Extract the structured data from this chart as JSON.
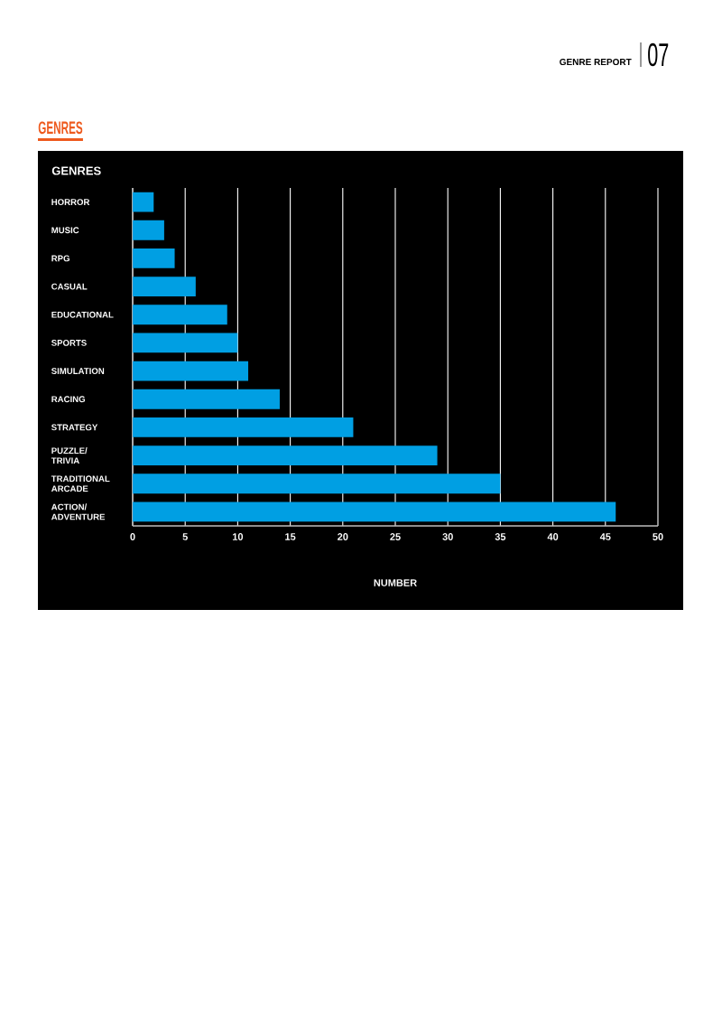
{
  "chart_data": {
    "type": "bar",
    "orientation": "horizontal",
    "title": "GENRES",
    "ylabel": "GENRES",
    "xlabel": "NUMBER",
    "categories": [
      "HORROR",
      "MUSIC",
      "RPG",
      "CASUAL",
      "EDUCATIONAL",
      "SPORTS",
      "SIMULATION",
      "RACING",
      "STRATEGY",
      "PUZZLE/TRIVIA",
      "TRADITIONAL ARCADE",
      "ACTION/ADVENTURE"
    ],
    "values": [
      2,
      3,
      4,
      6,
      9,
      10,
      11,
      14,
      21,
      29,
      35,
      46
    ],
    "color": "#009fe3",
    "xlim": [
      0,
      50
    ],
    "xticks": [
      0,
      5,
      10,
      15,
      20,
      25,
      30,
      35,
      40,
      45,
      50
    ],
    "grid": "x",
    "annotations": [
      "GENRE REPORT",
      "07"
    ]
  }
}
